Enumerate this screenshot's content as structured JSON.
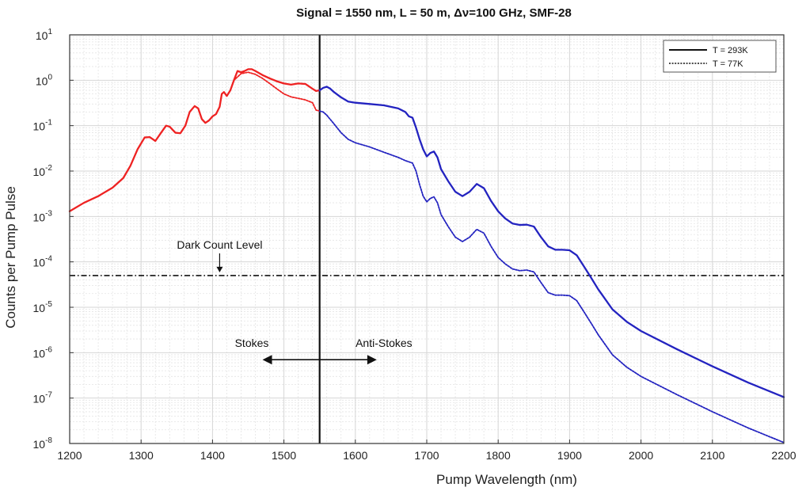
{
  "chart_data": {
    "type": "line",
    "title": "Signal = 1550 nm, L = 50 m,  Δν=100 GHz, SMF-28",
    "xlabel": "Pump Wavelength (nm)",
    "ylabel": "Counts per Pump Pulse",
    "xlim": [
      1200,
      2200
    ],
    "ylim": [
      1e-08,
      10
    ],
    "y_scale": "log",
    "grid": true,
    "x_ticks": [
      "1200",
      "1300",
      "1400",
      "1500",
      "1600",
      "1700",
      "1800",
      "1900",
      "2000",
      "2100",
      "2200"
    ],
    "y_tick_exponents": [
      "1",
      "0",
      "-1",
      "-2",
      "-3",
      "-4",
      "-5",
      "-6",
      "-7",
      "-8"
    ],
    "y_tick_base": "10",
    "legend": {
      "placement": "top-right",
      "entries": [
        {
          "label": "T = 293K",
          "style": "solid"
        },
        {
          "label": "T = 77K",
          "style": "dotted"
        }
      ]
    },
    "colors": {
      "stokes": "#ee2222",
      "anti_stokes": "#2323c0",
      "reference": "#111111"
    },
    "series": [
      {
        "name": "T = 293K",
        "style": "solid",
        "x": [
          1200,
          1220,
          1240,
          1260,
          1275,
          1285,
          1295,
          1305,
          1312,
          1320,
          1328,
          1335,
          1340,
          1348,
          1355,
          1362,
          1368,
          1375,
          1380,
          1385,
          1390,
          1395,
          1400,
          1405,
          1410,
          1413,
          1416,
          1420,
          1425,
          1430,
          1435,
          1440,
          1445,
          1450,
          1455,
          1460,
          1470,
          1480,
          1490,
          1500,
          1510,
          1520,
          1530,
          1540,
          1545,
          1550,
          1555,
          1560,
          1565,
          1570,
          1580,
          1590,
          1600,
          1620,
          1640,
          1660,
          1670,
          1675,
          1680,
          1685,
          1690,
          1695,
          1700,
          1705,
          1710,
          1715,
          1720,
          1730,
          1740,
          1750,
          1760,
          1770,
          1780,
          1790,
          1800,
          1810,
          1820,
          1830,
          1840,
          1850,
          1860,
          1870,
          1880,
          1890,
          1900,
          1910,
          1920,
          1930,
          1940,
          1960,
          1980,
          2000,
          2050,
          2100,
          2150,
          2200
        ],
        "y": [
          0.0013,
          0.002,
          0.0028,
          0.0043,
          0.007,
          0.013,
          0.03,
          0.055,
          0.056,
          0.046,
          0.07,
          0.1,
          0.095,
          0.07,
          0.068,
          0.1,
          0.2,
          0.27,
          0.24,
          0.14,
          0.115,
          0.13,
          0.16,
          0.18,
          0.26,
          0.5,
          0.55,
          0.45,
          0.6,
          1.0,
          1.6,
          1.5,
          1.6,
          1.75,
          1.75,
          1.6,
          1.3,
          1.1,
          0.95,
          0.85,
          0.8,
          0.85,
          0.83,
          0.65,
          0.58,
          0.6,
          0.68,
          0.72,
          0.65,
          0.55,
          0.42,
          0.34,
          0.32,
          0.3,
          0.28,
          0.24,
          0.2,
          0.16,
          0.15,
          0.09,
          0.05,
          0.03,
          0.021,
          0.025,
          0.027,
          0.02,
          0.011,
          0.006,
          0.0035,
          0.0028,
          0.0035,
          0.0052,
          0.0042,
          0.0022,
          0.0013,
          0.0009,
          0.0007,
          0.00065,
          0.00066,
          0.0006,
          0.00035,
          0.00022,
          0.000185,
          0.000185,
          0.00018,
          0.00014,
          8e-05,
          4.5e-05,
          2.5e-05,
          9e-06,
          4.8e-06,
          3e-06,
          1.2e-06,
          5e-07,
          2.2e-07,
          1.05e-07
        ]
      },
      {
        "name": "T = 77K",
        "style": "dotted",
        "x": [
          1430,
          1440,
          1450,
          1460,
          1470,
          1480,
          1490,
          1500,
          1510,
          1520,
          1530,
          1540,
          1545,
          1550,
          1555,
          1560,
          1570,
          1580,
          1590,
          1600,
          1620,
          1640,
          1660,
          1670,
          1680,
          1685,
          1690,
          1695,
          1700,
          1705,
          1710,
          1715,
          1720,
          1730,
          1740,
          1750,
          1760,
          1770,
          1780,
          1790,
          1800,
          1810,
          1820,
          1830,
          1840,
          1850,
          1860,
          1870,
          1880,
          1890,
          1900,
          1910,
          1920,
          1930,
          1940,
          1960,
          1980,
          2000,
          2050,
          2100,
          2150,
          2200
        ],
        "y": [
          1.0,
          1.4,
          1.5,
          1.35,
          1.1,
          0.85,
          0.65,
          0.5,
          0.43,
          0.4,
          0.37,
          0.32,
          0.22,
          0.21,
          0.2,
          0.17,
          0.11,
          0.07,
          0.05,
          0.042,
          0.034,
          0.026,
          0.02,
          0.017,
          0.015,
          0.01,
          0.005,
          0.0028,
          0.0021,
          0.0025,
          0.0027,
          0.002,
          0.0011,
          0.0006,
          0.00035,
          0.00028,
          0.00035,
          0.00052,
          0.00043,
          0.00022,
          0.000125,
          9e-05,
          7e-05,
          6.4e-05,
          6.6e-05,
          6e-05,
          3.5e-05,
          2.1e-05,
          1.85e-05,
          1.85e-05,
          1.8e-05,
          1.4e-05,
          8e-06,
          4.5e-06,
          2.5e-06,
          9e-07,
          4.8e-07,
          3e-07,
          1.2e-07,
          5e-08,
          2.2e-08,
          1.05e-08
        ]
      }
    ],
    "reference_lines": [
      {
        "type": "horizontal",
        "y": 5e-05,
        "style": "dash-dot",
        "label": "Dark Count Level"
      },
      {
        "type": "vertical",
        "x": 1550,
        "style": "solid"
      }
    ],
    "annotations": {
      "dark_count": {
        "text": "Dark Count Level",
        "x": 1410
      },
      "stokes": {
        "text": "Stokes"
      },
      "anti_stokes": {
        "text": "Anti-Stokes"
      },
      "arrow": {
        "x_start": 1470,
        "x_end": 1630,
        "y": 7e-07
      }
    }
  }
}
